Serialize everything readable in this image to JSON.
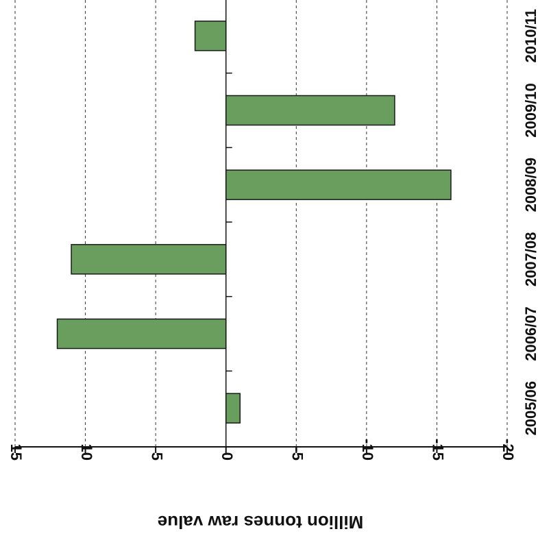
{
  "chart_data": {
    "type": "bar",
    "orientation": "horizontal",
    "categories": [
      "2005/06",
      "2006/07",
      "2007/08",
      "2008/09",
      "2009/10",
      "2010/11"
    ],
    "values": [
      -1,
      12,
      11,
      -16,
      -12,
      2.2
    ],
    "xlabel": "Million tonnes raw value",
    "ylabel": "",
    "xlim": [
      -20,
      15
    ],
    "xticks": [
      "15",
      "10",
      "5",
      "0",
      "-5",
      "-10",
      "-15",
      "-20"
    ],
    "x_reversed": true,
    "grid": "vertical dashed",
    "bar_color": "#6a9e5e",
    "bar_edge_color": "#1a1a1a"
  }
}
